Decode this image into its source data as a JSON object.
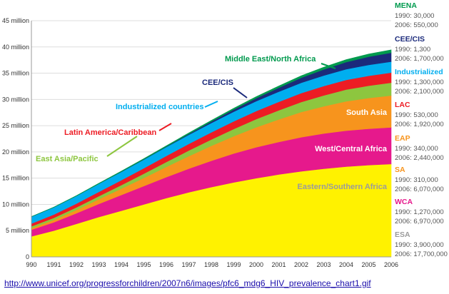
{
  "source_url": "http://www.unicef.org/progressforchildren/2007n6/images/pfc6_mdg6_HIV_prevalence_chart1.gif",
  "chart_data": {
    "type": "area",
    "stacked": true,
    "title": "",
    "xlabel": "",
    "ylabel": "",
    "ylim": [
      0,
      45000000
    ],
    "grid": true,
    "x": [
      1990,
      1991,
      1992,
      1993,
      1994,
      1995,
      1996,
      1997,
      1998,
      1999,
      2000,
      2001,
      2002,
      2003,
      2004,
      2005,
      2006
    ],
    "x_tick_labels": [
      "990",
      "1991",
      "1992",
      "1993",
      "1994",
      "1995",
      "1996",
      "1997",
      "1998",
      "1999",
      "2000",
      "2001",
      "2002",
      "2003",
      "2004",
      "2005",
      "2006"
    ],
    "y_ticks": [
      {
        "value": 0,
        "label": "0"
      },
      {
        "value": 5000000,
        "label": "5 million"
      },
      {
        "value": 10000000,
        "label": "10 million"
      },
      {
        "value": 15000000,
        "label": "15 million"
      },
      {
        "value": 20000000,
        "label": "20 million"
      },
      {
        "value": 25000000,
        "label": "25 million"
      },
      {
        "value": 30000000,
        "label": "30 million"
      },
      {
        "value": 35000000,
        "label": "35 million"
      },
      {
        "value": 40000000,
        "label": "40 million"
      },
      {
        "value": 45000000,
        "label": "45 million"
      }
    ],
    "series": [
      {
        "name": "Eastern/Southern Africa",
        "color": "#fff200",
        "values": [
          3900000,
          5000000,
          6300000,
          7600000,
          8800000,
          10000000,
          11200000,
          12300000,
          13300000,
          14200000,
          15000000,
          15700000,
          16300000,
          16800000,
          17200000,
          17500000,
          17700000
        ]
      },
      {
        "name": "West/Central Africa",
        "color": "#e6198c",
        "values": [
          1270000,
          1600000,
          2000000,
          2500000,
          3000000,
          3500000,
          4000000,
          4500000,
          5000000,
          5500000,
          5900000,
          6200000,
          6500000,
          6700000,
          6850000,
          6920000,
          6970000
        ]
      },
      {
        "name": "South Asia",
        "color": "#f7941d",
        "values": [
          310000,
          450000,
          650000,
          900000,
          1200000,
          1550000,
          1950000,
          2400000,
          2850000,
          3300000,
          3800000,
          4300000,
          4800000,
          5200000,
          5600000,
          5850000,
          6070000
        ]
      },
      {
        "name": "East Asia/Pacific",
        "color": "#8dc63f",
        "values": [
          340000,
          400000,
          480000,
          570000,
          680000,
          800000,
          930000,
          1070000,
          1220000,
          1380000,
          1550000,
          1720000,
          1900000,
          2070000,
          2230000,
          2350000,
          2440000
        ]
      },
      {
        "name": "Latin America/Caribbean",
        "color": "#ed1c24",
        "values": [
          530000,
          620000,
          720000,
          830000,
          940000,
          1050000,
          1160000,
          1260000,
          1360000,
          1450000,
          1540000,
          1620000,
          1700000,
          1780000,
          1840000,
          1890000,
          1920000
        ]
      },
      {
        "name": "Industrialized countries",
        "color": "#00aeef",
        "values": [
          1300000,
          1380000,
          1460000,
          1530000,
          1590000,
          1640000,
          1690000,
          1740000,
          1790000,
          1840000,
          1890000,
          1930000,
          1970000,
          2010000,
          2050000,
          2080000,
          2100000
        ]
      },
      {
        "name": "CEE/CIS",
        "color": "#1b2a7b",
        "values": [
          1300,
          2500,
          5000,
          10000,
          20000,
          40000,
          80000,
          150000,
          260000,
          400000,
          560000,
          750000,
          950000,
          1150000,
          1350000,
          1550000,
          1700000
        ]
      },
      {
        "name": "Middle East/North Africa",
        "color": "#009a4e",
        "values": [
          30000,
          50000,
          70000,
          90000,
          110000,
          140000,
          170000,
          200000,
          230000,
          260000,
          300000,
          340000,
          380000,
          420000,
          470000,
          510000,
          550000
        ]
      }
    ],
    "area_labels": [
      {
        "text": "Eastern/Southern Africa",
        "color": "#9b9b9b"
      },
      {
        "text": "West/Central Africa",
        "color": "#ffffff"
      },
      {
        "text": "South Asia",
        "color": "#ffffff"
      },
      {
        "text": "East Asia/Pacific",
        "color": "#8dc63f"
      },
      {
        "text": "Latin America/Caribbean",
        "color": "#ed1c24"
      },
      {
        "text": "Industrialized countries",
        "color": "#00aeef"
      },
      {
        "text": "CEE/CIS",
        "color": "#1b2a7b"
      },
      {
        "text": "Middle East/North Africa",
        "color": "#009a4e"
      }
    ],
    "legend": [
      {
        "abbr": "MENA",
        "color": "#009a4e",
        "y1990": "1990: 30,000",
        "y2006": "2006: 550,000"
      },
      {
        "abbr": "CEE/CIS",
        "color": "#1b2a7b",
        "y1990": "1990: 1,300",
        "y2006": "2006: 1,700,000"
      },
      {
        "abbr": "Industrialized",
        "color": "#00aeef",
        "y1990": "1990: 1,300,000",
        "y2006": "2006: 2,100,000"
      },
      {
        "abbr": "LAC",
        "color": "#ed1c24",
        "y1990": "1990: 530,000",
        "y2006": "2006: 1,920,000"
      },
      {
        "abbr": "EAP",
        "color": "#f7941d",
        "y1990": "1990: 340,000",
        "y2006": "2006: 2,440,000"
      },
      {
        "abbr": "SA",
        "color": "#f7941d",
        "y1990": "1990: 310,000",
        "y2006": "2006: 6,070,000"
      },
      {
        "abbr": "WCA",
        "color": "#e6198c",
        "y1990": "1990: 1,270,000",
        "y2006": "2006: 6,970,000"
      },
      {
        "abbr": "ESA",
        "color": "#9b9b9b",
        "y1990": "1990: 3,900,000",
        "y2006": "2006: 17,700,000"
      }
    ]
  }
}
